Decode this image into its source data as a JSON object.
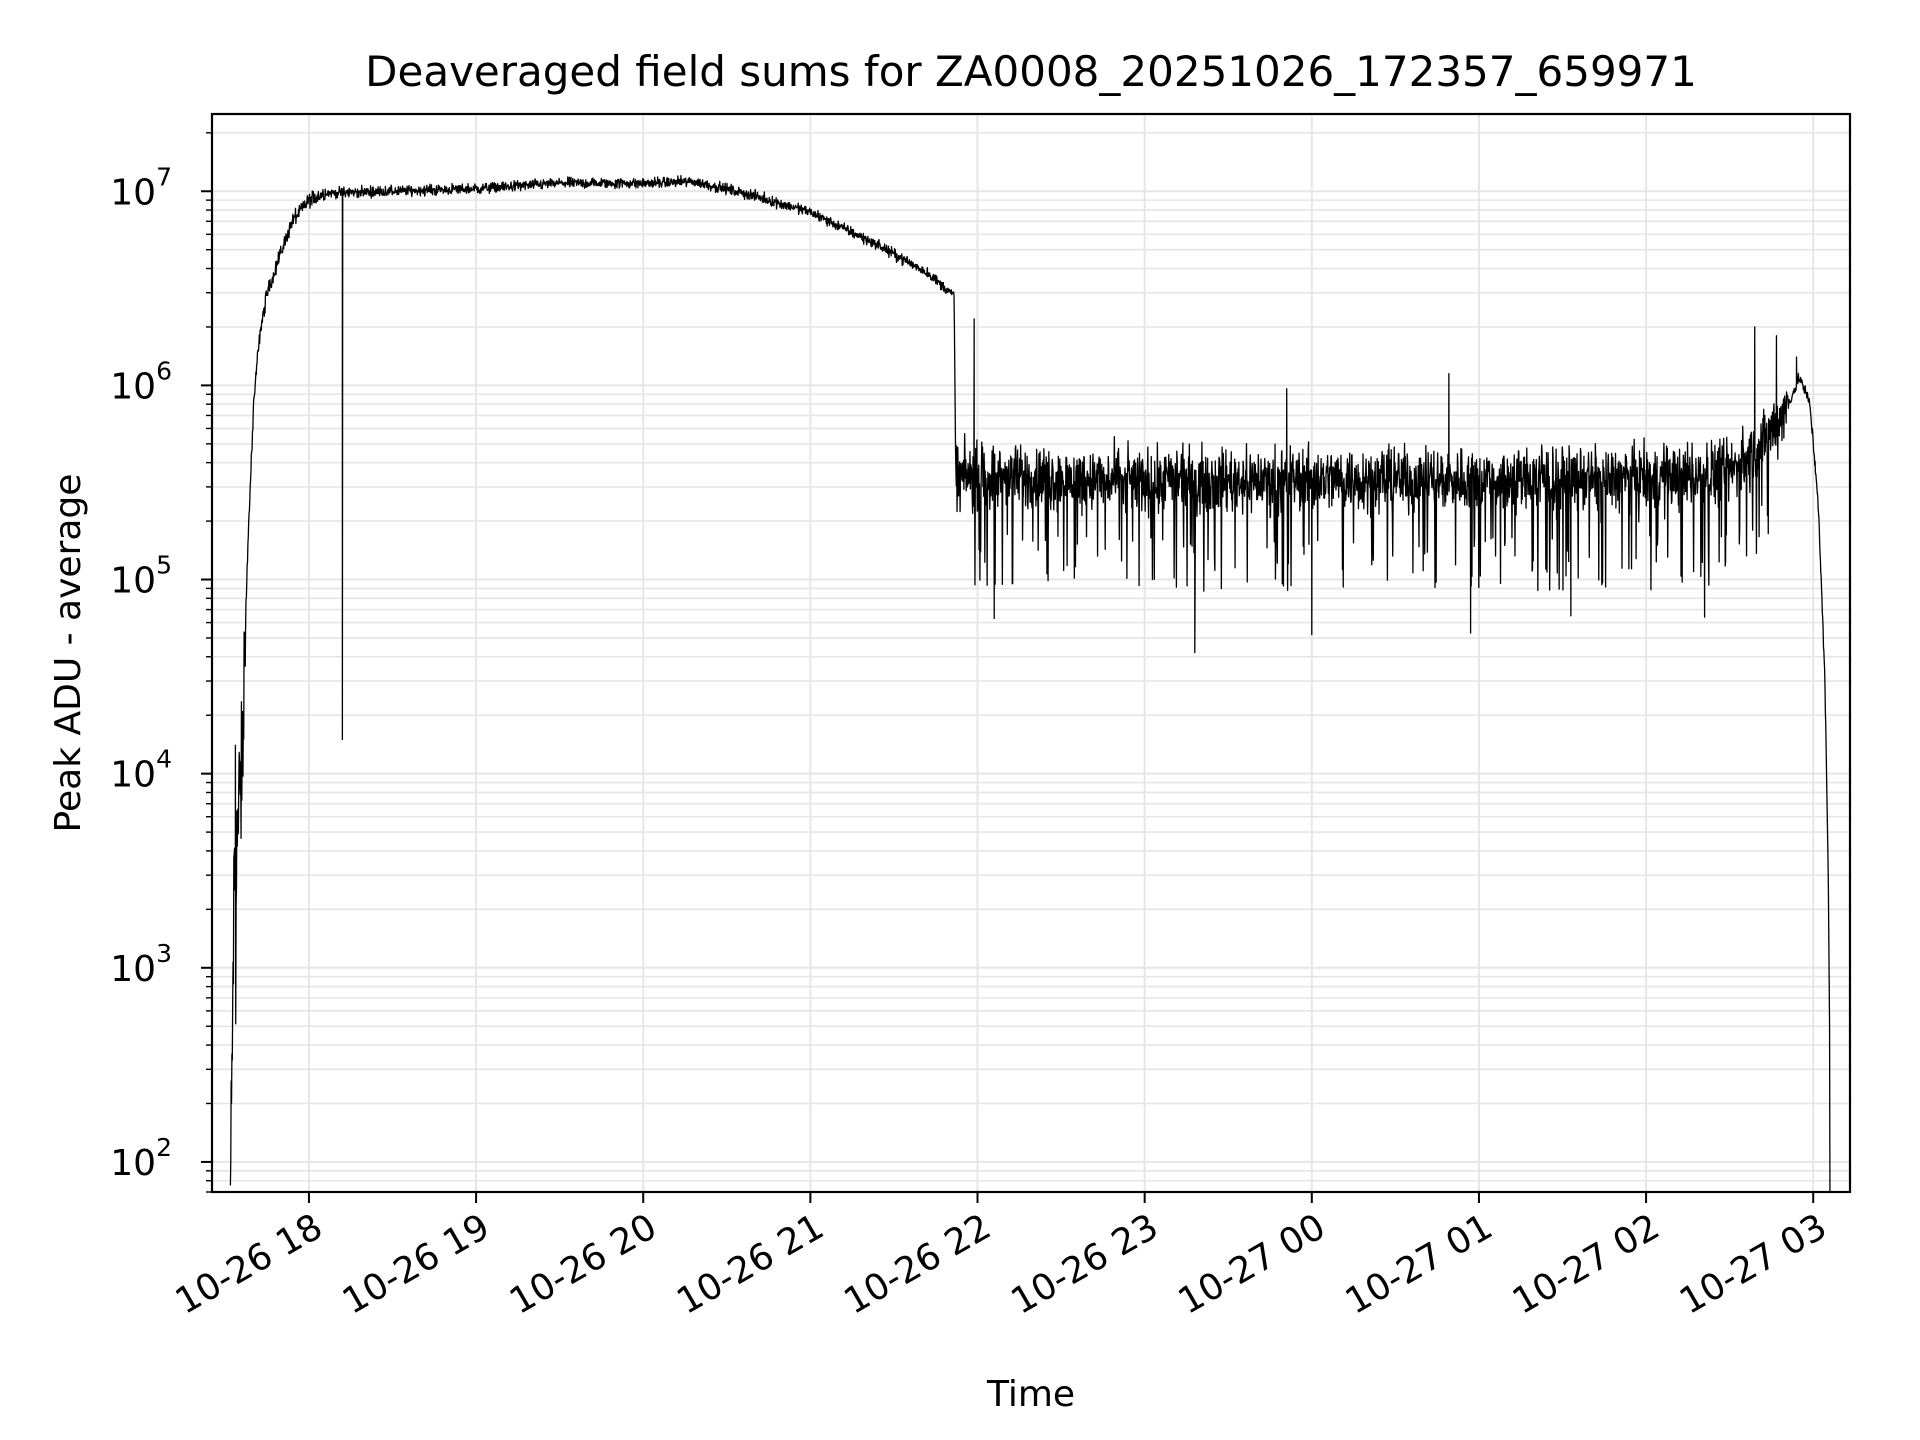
{
  "chart_data": {
    "type": "line",
    "title": "Deaveraged field sums for ZA0008_20251026_172357_659971",
    "xlabel": "Time",
    "ylabel": "Peak ADU - average",
    "yscale": "log",
    "ylim": [
      70,
      25000000
    ],
    "xlim_hours": [
      17.42,
      27.22
    ],
    "grid": true,
    "line_color": "#000000",
    "grid_color": "#e6e6e6",
    "x_ticks": [
      {
        "hour": 18,
        "label": "10-26 18"
      },
      {
        "hour": 19,
        "label": "10-26 19"
      },
      {
        "hour": 20,
        "label": "10-26 20"
      },
      {
        "hour": 21,
        "label": "10-26 21"
      },
      {
        "hour": 22,
        "label": "10-26 22"
      },
      {
        "hour": 23,
        "label": "10-26 23"
      },
      {
        "hour": 24,
        "label": "10-27 00"
      },
      {
        "hour": 25,
        "label": "10-27 01"
      },
      {
        "hour": 26,
        "label": "10-27 02"
      },
      {
        "hour": 27,
        "label": "10-27 03"
      }
    ],
    "y_ticks": [
      {
        "value": 100,
        "base": "10",
        "exp": "2"
      },
      {
        "value": 1000,
        "base": "10",
        "exp": "3"
      },
      {
        "value": 10000,
        "base": "10",
        "exp": "4"
      },
      {
        "value": 100000,
        "base": "10",
        "exp": "5"
      },
      {
        "value": 1000000,
        "base": "10",
        "exp": "6"
      },
      {
        "value": 10000000,
        "base": "10",
        "exp": "7"
      }
    ],
    "series": [
      {
        "name": "deaveraged field sum",
        "trend": [
          [
            17.53,
            70
          ],
          [
            17.54,
            300
          ],
          [
            17.55,
            2000
          ],
          [
            17.57,
            5000
          ],
          [
            17.6,
            10000
          ],
          [
            17.62,
            60000
          ],
          [
            17.64,
            200000
          ],
          [
            17.67,
            800000
          ],
          [
            17.7,
            1700000
          ],
          [
            17.75,
            3000000
          ],
          [
            17.82,
            4500000
          ],
          [
            17.9,
            7000000
          ],
          [
            18.0,
            9000000
          ],
          [
            18.1,
            9800000
          ],
          [
            18.5,
            10000000
          ],
          [
            19.0,
            10300000
          ],
          [
            19.5,
            11000000
          ],
          [
            20.0,
            11000000
          ],
          [
            20.3,
            11200000
          ],
          [
            20.6,
            9800000
          ],
          [
            21.0,
            7800000
          ],
          [
            21.4,
            5300000
          ],
          [
            21.7,
            3800000
          ],
          [
            21.86,
            2900000
          ],
          [
            21.87,
            340000
          ],
          [
            23.0,
            320000
          ],
          [
            24.0,
            330000
          ],
          [
            25.0,
            330000
          ],
          [
            26.0,
            330000
          ],
          [
            26.5,
            360000
          ],
          [
            26.7,
            500000
          ],
          [
            26.85,
            800000
          ],
          [
            26.92,
            1100000
          ],
          [
            26.98,
            800000
          ],
          [
            27.03,
            250000
          ],
          [
            27.07,
            30000
          ],
          [
            27.09,
            3000
          ],
          [
            27.1,
            300
          ],
          [
            27.1,
            70
          ]
        ],
        "noise": [
          {
            "from": 17.53,
            "to": 17.62,
            "log_spread": 0.55
          },
          {
            "from": 17.62,
            "to": 18.1,
            "log_spread": 0.06
          },
          {
            "from": 18.1,
            "to": 21.86,
            "log_spread": 0.04
          },
          {
            "from": 21.87,
            "to": 26.85,
            "log_spread": 0.24
          },
          {
            "from": 26.85,
            "to": 27.08,
            "log_spread": 0.05
          }
        ],
        "spikes": [
          [
            17.56,
            14000
          ],
          [
            18.2,
            15000
          ],
          [
            21.98,
            2200000
          ],
          [
            22.1,
            63000
          ],
          [
            23.3,
            42000
          ],
          [
            23.85,
            960000
          ],
          [
            24.0,
            52000
          ],
          [
            24.82,
            1150000
          ],
          [
            24.95,
            53000
          ],
          [
            26.65,
            2000000
          ],
          [
            26.78,
            1800000
          ],
          [
            26.9,
            1400000
          ],
          [
            25.55,
            65000
          ],
          [
            26.35,
            64000
          ]
        ]
      }
    ]
  }
}
